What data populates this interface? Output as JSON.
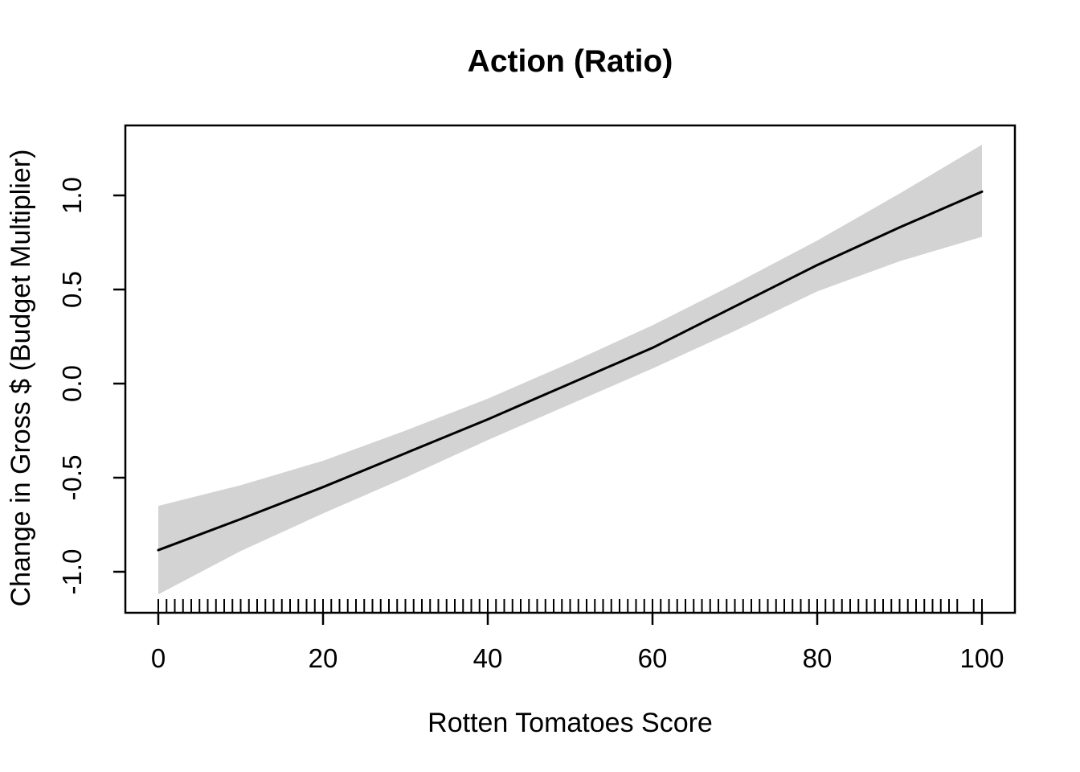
{
  "chart_data": {
    "type": "line",
    "title": "Action (Ratio)",
    "xlabel": "Rotten Tomatoes Score",
    "ylabel": "Change in Gross $ (Budget Multiplier)",
    "xlim": [
      -4,
      104
    ],
    "ylim": [
      -1.22,
      1.37
    ],
    "grid": false,
    "legend": "none",
    "line_color": "#000000",
    "band_color": "#d3d3d3",
    "x_ticks": {
      "values": [
        0,
        20,
        40,
        60,
        80,
        100
      ],
      "labels": [
        "0",
        "20",
        "40",
        "60",
        "80",
        "100"
      ]
    },
    "y_ticks": {
      "values": [
        -1.0,
        -0.5,
        0.0,
        0.5,
        1.0
      ],
      "labels": [
        "-1.0",
        "-0.5",
        "0.0",
        "0.5",
        "1.0"
      ]
    },
    "series": [
      {
        "name": "fit",
        "x": [
          0,
          10,
          20,
          30,
          40,
          50,
          60,
          70,
          80,
          90,
          100
        ],
        "y": [
          -0.885,
          -0.72,
          -0.55,
          -0.37,
          -0.19,
          0.0,
          0.19,
          0.41,
          0.63,
          0.83,
          1.02
        ]
      },
      {
        "name": "ci_upper",
        "x": [
          0,
          10,
          20,
          30,
          40,
          50,
          60,
          70,
          80,
          90,
          100
        ],
        "y": [
          -0.65,
          -0.54,
          -0.41,
          -0.25,
          -0.08,
          0.11,
          0.31,
          0.53,
          0.76,
          1.01,
          1.27
        ]
      },
      {
        "name": "ci_lower",
        "x": [
          0,
          10,
          20,
          30,
          40,
          50,
          60,
          70,
          80,
          90,
          100
        ],
        "y": [
          -1.12,
          -0.89,
          -0.69,
          -0.5,
          -0.3,
          -0.11,
          0.08,
          0.28,
          0.49,
          0.65,
          0.78
        ]
      }
    ],
    "rug": {
      "axis": "x",
      "start": 0,
      "end": 100,
      "step": 1,
      "gaps": [
        98
      ]
    }
  }
}
